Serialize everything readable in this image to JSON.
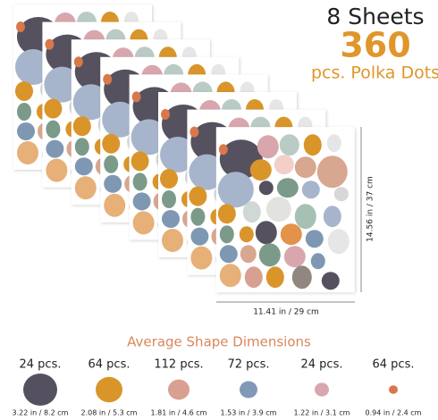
{
  "header": {
    "sheets": "8 Sheets",
    "count": "360",
    "subtitle": "pcs. Polka Dots"
  },
  "dimensions": {
    "height": "14.56 in / 37 cm",
    "width": "11.41 in / 29 cm"
  },
  "shapes": {
    "title": "Average Shape Dimensions",
    "items": [
      {
        "count": "24 pcs.",
        "size": "3.22 in / 8.2 cm"
      },
      {
        "count": "64 pcs.",
        "size": "2.08 in / 5.3 cm"
      },
      {
        "count": "112 pcs.",
        "size": "1.81 in / 4.6 cm"
      },
      {
        "count": "72 pcs.",
        "size": "1.53 in / 3.9 cm"
      },
      {
        "count": "24 pcs.",
        "size": "1.22 in / 3.1 cm"
      },
      {
        "count": "64 pcs.",
        "size": "0.94 in / 2.4 cm"
      }
    ]
  }
}
